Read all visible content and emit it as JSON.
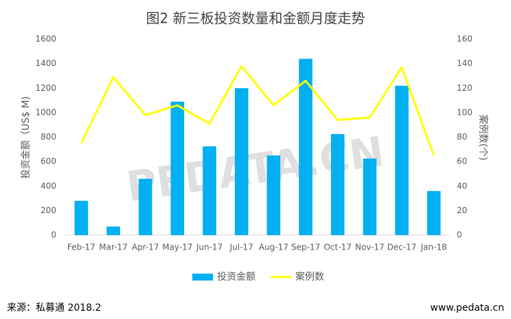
{
  "chart_data": {
    "type": "bar_line",
    "title": "图2 新三板投资数量和金额月度走势",
    "y_label": "投资金额（US$ M)",
    "y2_label": "案例数(个)",
    "categories": [
      "Feb-17",
      "Mar-17",
      "Apr-17",
      "May-17",
      "Jun-17",
      "Jul-17",
      "Aug-17",
      "Sep-17",
      "Oct-17",
      "Nov-17",
      "Dec-17",
      "Jan-18"
    ],
    "series": [
      {
        "name": "投资金额",
        "type": "bar",
        "color": "#00b0f0",
        "values": [
          280,
          70,
          460,
          1090,
          725,
          1200,
          650,
          1440,
          825,
          625,
          1220,
          360
        ]
      },
      {
        "name": "案例数",
        "type": "line",
        "axis": "y2",
        "color": "#ffff00",
        "values": [
          75,
          129,
          98,
          106,
          91,
          138,
          106,
          126,
          94,
          96,
          137,
          65
        ]
      }
    ],
    "ylim": [
      0,
      1600
    ],
    "yticks": [
      0,
      200,
      400,
      600,
      800,
      1000,
      1200,
      1400,
      1600
    ],
    "y2lim": [
      0,
      160
    ],
    "y2ticks": [
      0,
      20,
      40,
      60,
      80,
      100,
      120,
      140,
      160
    ],
    "legend": "bottom",
    "watermark": "PEDATA.CN"
  },
  "footer": {
    "source": "来源：私募通  2018.2",
    "website": "www.pedata.cn"
  }
}
